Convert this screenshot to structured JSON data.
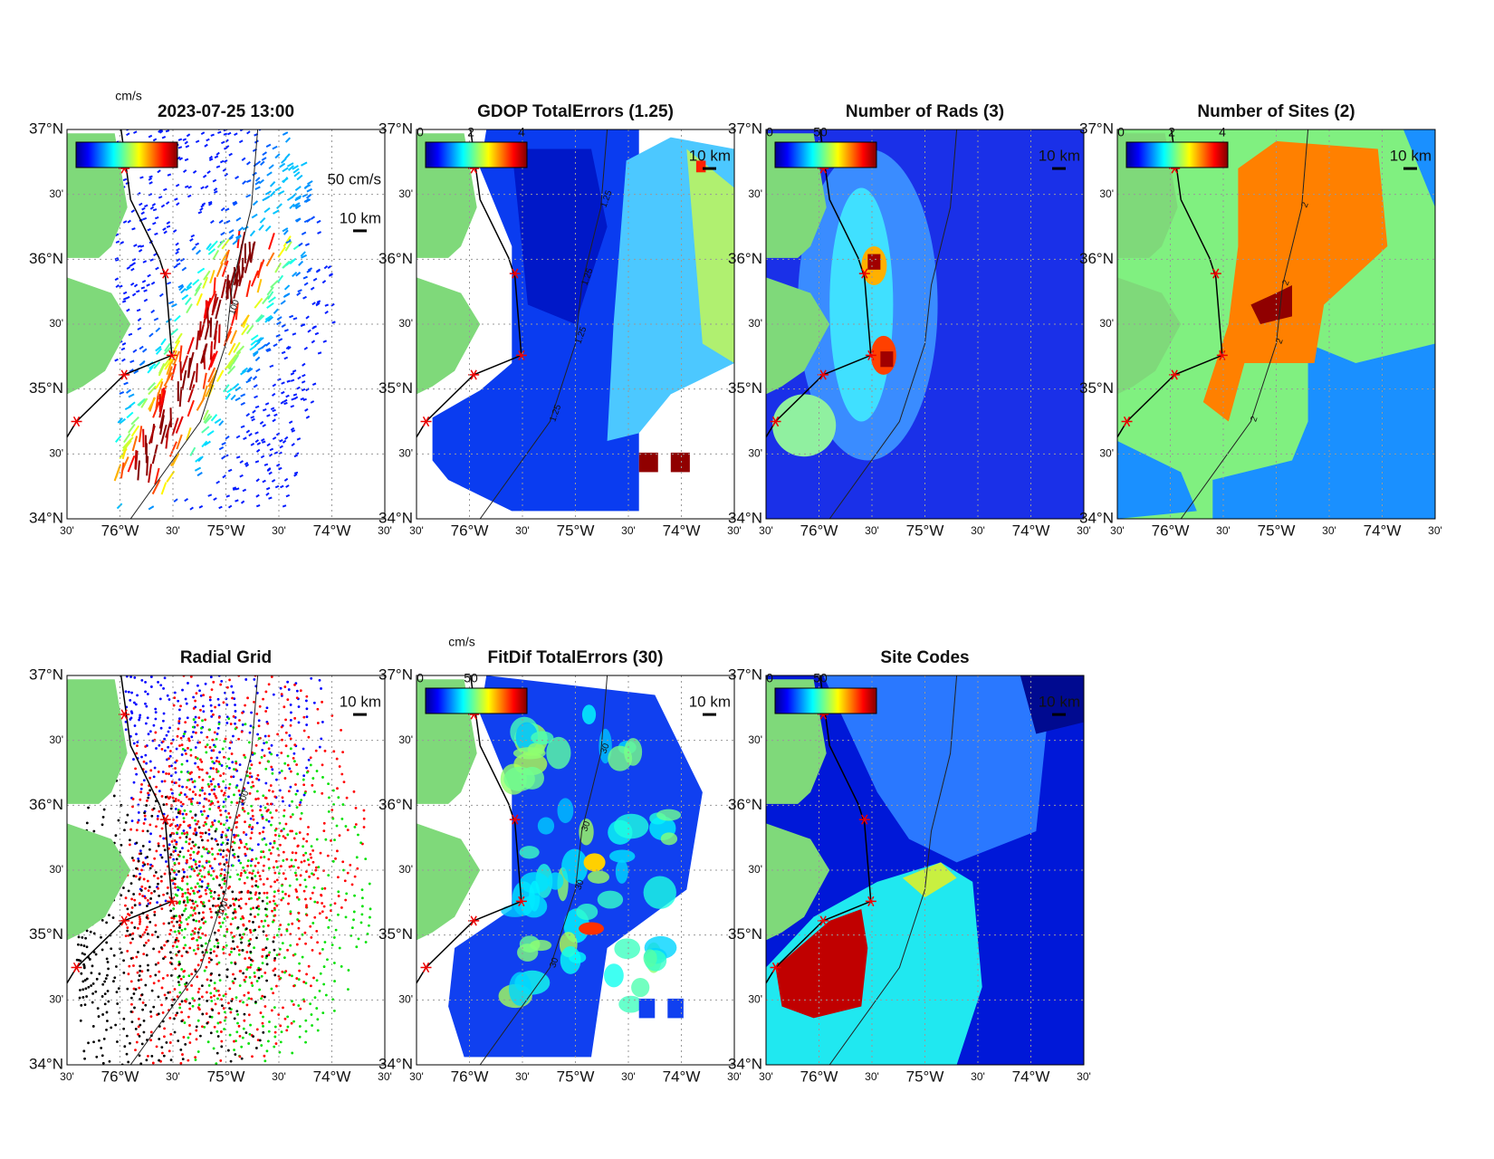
{
  "axes": {
    "lat_labels": [
      "37°N",
      "30'",
      "36°N",
      "30'",
      "35°N",
      "30'",
      "34°N"
    ],
    "lon_labels": [
      "30'",
      "76°W",
      "30'",
      "75°W",
      "30'",
      "74°W",
      "30'"
    ]
  },
  "panels": [
    {
      "title": "2023-07-25 13:00",
      "colorbar_label": "cm/s",
      "scale_labels": [
        "50 cm/s",
        "10 km"
      ],
      "contour_labels": [
        "100"
      ]
    },
    {
      "title": "GDOP TotalErrors (1.25)",
      "colorbar_ticks": [
        0,
        2,
        4
      ],
      "scale_labels": [
        "10 km"
      ],
      "contour_labels": [
        "1.25",
        "1.25",
        "1.25",
        "1.25"
      ]
    },
    {
      "title": "Number of Rads (3)",
      "colorbar_ticks": [
        0,
        50
      ],
      "scale_labels": [
        "10 km"
      ],
      "contour_labels": []
    },
    {
      "title": "Number of Sites (2)",
      "colorbar_ticks": [
        0,
        2,
        4
      ],
      "scale_labels": [
        "10 km"
      ],
      "contour_labels": [
        "2",
        "2",
        "2",
        "2"
      ]
    },
    {
      "title": "Radial Grid",
      "scale_labels": [
        "10 km"
      ],
      "contour_labels": [
        "100",
        "100"
      ]
    },
    {
      "title": "FitDif TotalErrors (30)",
      "colorbar_label": "cm/s",
      "colorbar_ticks": [
        0,
        50
      ],
      "scale_labels": [
        "10 km"
      ],
      "contour_labels": [
        "30",
        "30",
        "30",
        "30"
      ]
    },
    {
      "title": "Site Codes",
      "colorbar_ticks": [
        0,
        50
      ],
      "scale_labels": [
        "10 km"
      ],
      "contour_labels": []
    }
  ]
}
